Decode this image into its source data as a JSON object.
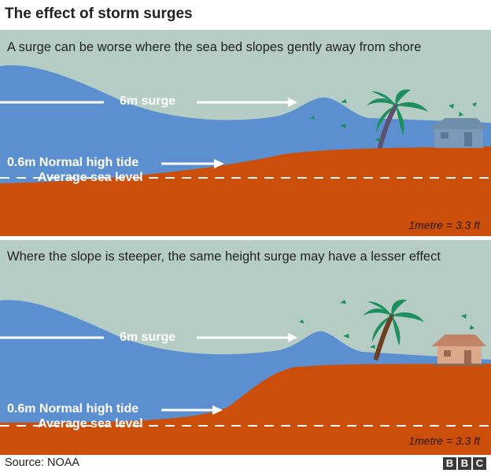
{
  "title": "The effect of storm surges",
  "panels": [
    {
      "caption": "A surge can be worse where the sea bed slopes gently away from shore",
      "surge_label": "6m surge",
      "tide_label": "0.6m Normal high tide",
      "sea_level_label": "Average sea level",
      "conversion": "1metre = 3.3 ft"
    },
    {
      "caption": "Where the slope is steeper, the same height surge may have a lesser effect",
      "surge_label": "6m surge",
      "tide_label": "0.6m Normal high tide",
      "sea_level_label": "Average sea level",
      "conversion": "1metre = 3.3 ft"
    }
  ],
  "source": "Source: NOAA",
  "logo": [
    "B",
    "B",
    "C"
  ],
  "colors": {
    "sky": "#b5cdc4",
    "sea": "#5b8fd0",
    "seabed": "#cc4e0b",
    "palm_leaf": "#1f8f5e",
    "trunk": "#6b3f22"
  }
}
